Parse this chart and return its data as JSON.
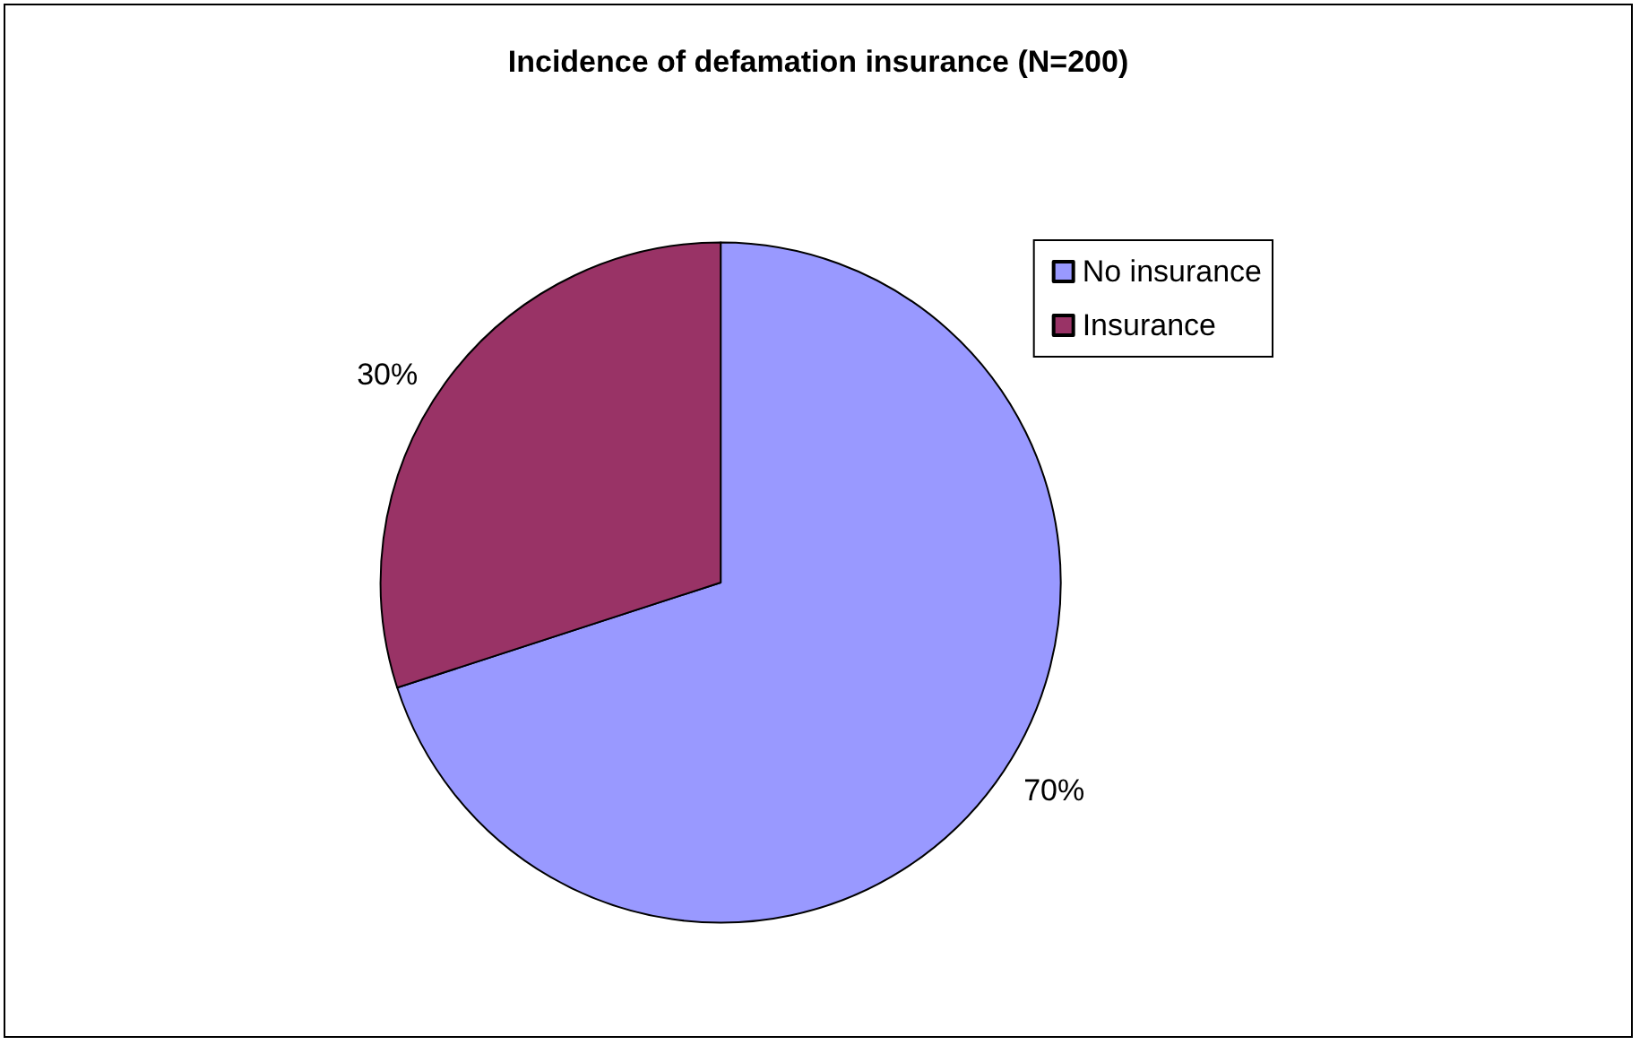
{
  "chart_data": {
    "type": "pie",
    "title": "Incidence of defamation insurance (N=200)",
    "categories": [
      "No insurance",
      "Insurance"
    ],
    "values": [
      70,
      30
    ],
    "colors": [
      "#9999ff",
      "#993366"
    ],
    "value_labels": [
      "70%",
      "30%"
    ],
    "legend": "top right"
  }
}
